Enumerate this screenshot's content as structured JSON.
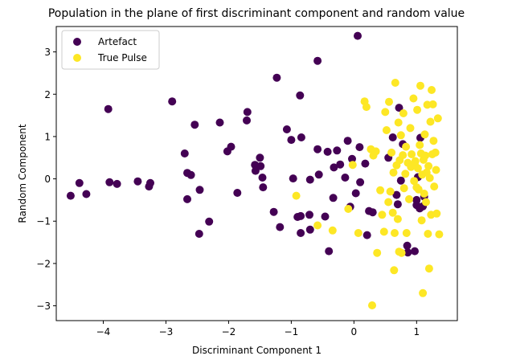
{
  "chart_data": {
    "type": "scatter",
    "title": "Population in the plane of first discriminant component and random value",
    "xlabel": "Discriminant Component 1",
    "ylabel": "Random Component",
    "xlim": [
      -4.75,
      1.65
    ],
    "ylim": [
      -3.35,
      3.6
    ],
    "xticks": [
      -4,
      -3,
      -2,
      -1,
      0,
      1
    ],
    "yticks": [
      -3,
      -2,
      -1,
      0,
      1,
      2,
      3
    ],
    "xtick_labels": [
      "−4",
      "−3",
      "−2",
      "−1",
      "0",
      "1"
    ],
    "ytick_labels": [
      "−3",
      "−2",
      "−1",
      "0",
      "1",
      "2",
      "3"
    ],
    "grid": false,
    "legend_position": "upper-left",
    "series": [
      {
        "name": "Artefact",
        "color": "#440154",
        "points": [
          [
            -4.52,
            -0.4
          ],
          [
            -4.38,
            -0.1
          ],
          [
            -4.27,
            -0.36
          ],
          [
            -3.92,
            1.65
          ],
          [
            -3.9,
            -0.08
          ],
          [
            -3.78,
            -0.12
          ],
          [
            -3.45,
            -0.06
          ],
          [
            -3.27,
            -0.18
          ],
          [
            -3.25,
            -0.1
          ],
          [
            -2.9,
            1.83
          ],
          [
            -2.7,
            0.6
          ],
          [
            -2.66,
            0.14
          ],
          [
            -2.66,
            -0.48
          ],
          [
            -2.6,
            0.09
          ],
          [
            -2.54,
            1.28
          ],
          [
            -2.47,
            -1.3
          ],
          [
            -2.46,
            -0.26
          ],
          [
            -2.31,
            -1.01
          ],
          [
            -2.14,
            1.33
          ],
          [
            -2.02,
            0.65
          ],
          [
            -1.96,
            0.76
          ],
          [
            -1.86,
            -0.33
          ],
          [
            -1.7,
            1.58
          ],
          [
            -1.71,
            1.38
          ],
          [
            -1.58,
            0.33
          ],
          [
            -1.57,
            0.19
          ],
          [
            -1.5,
            0.5
          ],
          [
            -1.49,
            0.3
          ],
          [
            -1.46,
            0.03
          ],
          [
            -1.45,
            -0.2
          ],
          [
            -1.28,
            -0.78
          ],
          [
            -1.23,
            2.39
          ],
          [
            -1.18,
            -1.14
          ],
          [
            -1.07,
            1.17
          ],
          [
            -1.0,
            0.92
          ],
          [
            -0.97,
            0.01
          ],
          [
            -0.9,
            -0.9
          ],
          [
            -0.86,
            1.97
          ],
          [
            -0.85,
            -0.88
          ],
          [
            -0.85,
            -1.28
          ],
          [
            -0.84,
            0.98
          ],
          [
            -0.71,
            -0.85
          ],
          [
            -0.7,
            -1.2
          ],
          [
            -0.7,
            -0.02
          ],
          [
            -0.58,
            2.79
          ],
          [
            -0.58,
            0.7
          ],
          [
            -0.56,
            0.1
          ],
          [
            -0.46,
            -0.89
          ],
          [
            -0.42,
            0.64
          ],
          [
            -0.4,
            -1.71
          ],
          [
            -0.33,
            -0.45
          ],
          [
            -0.32,
            0.27
          ],
          [
            -0.27,
            0.67
          ],
          [
            -0.22,
            0.34
          ],
          [
            -0.14,
            0.03
          ],
          [
            -0.1,
            0.9
          ],
          [
            -0.06,
            -0.66
          ],
          [
            -0.03,
            0.47
          ],
          [
            0.03,
            -0.34
          ],
          [
            0.06,
            3.38
          ],
          [
            0.09,
            0.75
          ],
          [
            0.1,
            -0.08
          ],
          [
            0.18,
            0.36
          ],
          [
            0.21,
            -1.33
          ],
          [
            0.24,
            -0.76
          ],
          [
            0.3,
            -0.79
          ],
          [
            0.55,
            0.5
          ],
          [
            0.62,
            0.98
          ],
          [
            0.68,
            -0.38
          ],
          [
            0.7,
            -0.6
          ],
          [
            0.72,
            1.68
          ],
          [
            0.75,
            -0.04
          ],
          [
            0.78,
            0.82
          ],
          [
            0.85,
            -1.58
          ],
          [
            0.86,
            -1.74
          ],
          [
            0.97,
            -1.71
          ],
          [
            1.0,
            -0.5
          ],
          [
            1.0,
            -0.62
          ],
          [
            1.02,
            0.04
          ],
          [
            1.05,
            -0.7
          ],
          [
            1.06,
            0.97
          ],
          [
            1.1,
            -0.65
          ],
          [
            1.12,
            -0.42
          ]
        ]
      },
      {
        "name": "True Pulse",
        "color": "#fde725",
        "points": [
          [
            -0.92,
            -0.4
          ],
          [
            -0.58,
            -1.1
          ],
          [
            -0.34,
            -1.22
          ],
          [
            -0.09,
            -0.71
          ],
          [
            -0.02,
            0.33
          ],
          [
            0.07,
            -1.28
          ],
          [
            0.17,
            1.83
          ],
          [
            0.2,
            1.7
          ],
          [
            0.27,
            0.7
          ],
          [
            0.29,
            -2.99
          ],
          [
            0.31,
            0.55
          ],
          [
            0.35,
            0.65
          ],
          [
            0.37,
            -1.75
          ],
          [
            0.42,
            -0.27
          ],
          [
            0.45,
            -0.85
          ],
          [
            0.48,
            -1.25
          ],
          [
            0.5,
            1.58
          ],
          [
            0.52,
            1.15
          ],
          [
            0.55,
            -0.55
          ],
          [
            0.56,
            1.82
          ],
          [
            0.58,
            -0.3
          ],
          [
            0.6,
            0.62
          ],
          [
            0.62,
            -0.8
          ],
          [
            0.63,
            0.15
          ],
          [
            0.64,
            -2.16
          ],
          [
            0.65,
            -1.28
          ],
          [
            0.66,
            2.27
          ],
          [
            0.68,
            0.32
          ],
          [
            0.7,
            -0.95
          ],
          [
            0.71,
            1.33
          ],
          [
            0.72,
            -1.72
          ],
          [
            0.73,
            0.44
          ],
          [
            0.75,
            1.03
          ],
          [
            0.76,
            -1.75
          ],
          [
            0.78,
            0.56
          ],
          [
            0.79,
            1.55
          ],
          [
            0.8,
            -0.22
          ],
          [
            0.82,
            0.12
          ],
          [
            0.83,
            0.76
          ],
          [
            0.84,
            -1.28
          ],
          [
            0.86,
            0.38
          ],
          [
            0.88,
            -0.48
          ],
          [
            0.9,
            1.2
          ],
          [
            0.91,
            0.28
          ],
          [
            0.92,
            0.58
          ],
          [
            0.95,
            1.9
          ],
          [
            0.96,
            -0.05
          ],
          [
            0.97,
            0.35
          ],
          [
            0.98,
            0.42
          ],
          [
            1.0,
            -0.2
          ],
          [
            1.01,
            1.63
          ],
          [
            1.02,
            0.25
          ],
          [
            1.03,
            -0.25
          ],
          [
            1.05,
            0.8
          ],
          [
            1.06,
            2.2
          ],
          [
            1.07,
            0.6
          ],
          [
            1.08,
            -0.98
          ],
          [
            1.09,
            0.1
          ],
          [
            1.1,
            -2.7
          ],
          [
            1.11,
            0.45
          ],
          [
            1.12,
            -0.35
          ],
          [
            1.13,
            1.05
          ],
          [
            1.14,
            0.55
          ],
          [
            1.15,
            -0.55
          ],
          [
            1.16,
            0.15
          ],
          [
            1.17,
            1.75
          ],
          [
            1.18,
            -1.3
          ],
          [
            1.19,
            0.3
          ],
          [
            1.2,
            -2.12
          ],
          [
            1.21,
            0.02
          ],
          [
            1.22,
            1.35
          ],
          [
            1.23,
            -0.85
          ],
          [
            1.24,
            2.1
          ],
          [
            1.25,
            0.58
          ],
          [
            1.26,
            1.76
          ],
          [
            1.27,
            0.9
          ],
          [
            1.28,
            -0.18
          ],
          [
            1.3,
            0.62
          ],
          [
            1.31,
            0.21
          ],
          [
            1.32,
            -0.82
          ],
          [
            1.34,
            1.43
          ],
          [
            1.36,
            -1.31
          ]
        ]
      }
    ]
  }
}
